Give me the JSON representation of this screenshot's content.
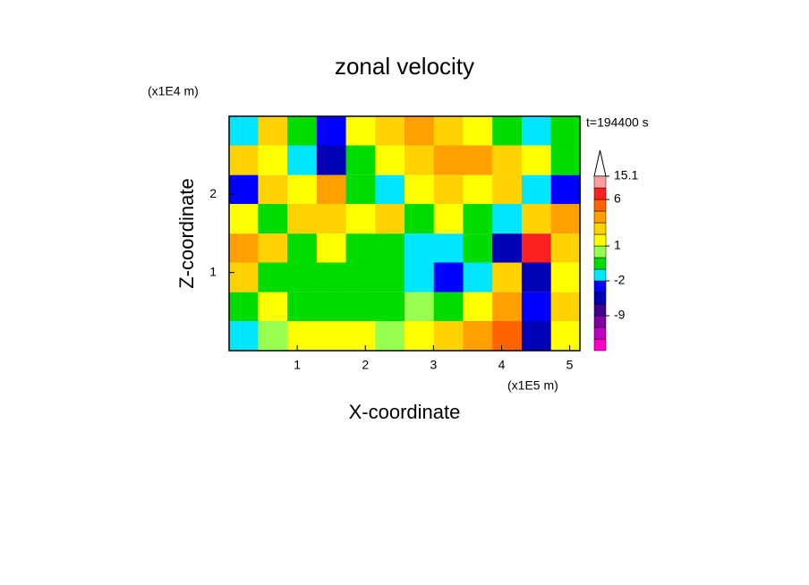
{
  "chart_data": {
    "type": "contour",
    "title": "zonal velocity",
    "x_label": "X-coordinate",
    "y_label": "Z-coordinate",
    "x_unit": "(x1E5 m)",
    "y_unit": "(x1E4 m)",
    "annotation": "t=194400 s",
    "xlim": [
      0,
      5.15
    ],
    "ylim": [
      0,
      3
    ],
    "xticks": [
      1,
      2,
      3,
      4,
      5
    ],
    "yticks": [
      1,
      2
    ],
    "x": [
      0.21,
      0.64,
      1.07,
      1.5,
      1.93,
      2.36,
      2.79,
      3.22,
      3.65,
      4.08,
      4.51,
      4.94
    ],
    "y": [
      2.81,
      2.44,
      2.06,
      1.69,
      1.31,
      0.94,
      0.56,
      0.19
    ],
    "z": [
      [
        -1.5,
        2.5,
        -0.5,
        -3,
        1.5,
        2.5,
        3.5,
        2.5,
        1.5,
        -0.5,
        -1.5,
        -0.5
      ],
      [
        2.5,
        1.5,
        -1.5,
        -5,
        -0.5,
        1.5,
        2.5,
        3.5,
        3.5,
        2.5,
        1.5,
        -0.5
      ],
      [
        -3,
        2.5,
        1.5,
        3.5,
        -0.5,
        -1.5,
        1.5,
        2.5,
        1.5,
        2.5,
        -1.5,
        -3
      ],
      [
        1.5,
        -0.5,
        2.5,
        2.5,
        1.5,
        2.5,
        -0.5,
        1.5,
        -0.5,
        -1.5,
        2.5,
        3.5
      ],
      [
        3.5,
        2.5,
        -0.5,
        1.5,
        -0.5,
        -0.5,
        -1.5,
        -1.5,
        -0.5,
        -5,
        8,
        2.5
      ],
      [
        2.5,
        -0.5,
        -0.5,
        -0.5,
        -0.5,
        -0.5,
        -1.5,
        -3,
        -1.5,
        2.5,
        -5,
        1.5
      ],
      [
        -0.5,
        1.5,
        -0.5,
        -0.5,
        -0.5,
        -0.5,
        0.5,
        -0.5,
        1.5,
        3.5,
        -3,
        2.5
      ],
      [
        -1.5,
        0.5,
        1.5,
        1.5,
        1.5,
        0.5,
        1.5,
        2.5,
        3.5,
        5,
        -5,
        1.5
      ]
    ],
    "colorbar": {
      "levels": [
        -21,
        -15,
        -12,
        -9,
        -6,
        -4,
        -2,
        -1,
        0,
        1,
        2,
        3,
        4,
        6,
        10,
        15.1
      ],
      "colors": [
        "#ff00c8",
        "#c000c0",
        "#8000a0",
        "#40008c",
        "#0000b4",
        "#0000ff",
        "#00e6ff",
        "#00dc00",
        "#96ff50",
        "#ffff00",
        "#ffd200",
        "#ffa000",
        "#ff6400",
        "#ff2020",
        "#ffa0a0"
      ],
      "ticks": [
        -9,
        -2,
        1,
        6,
        15.1
      ]
    }
  }
}
